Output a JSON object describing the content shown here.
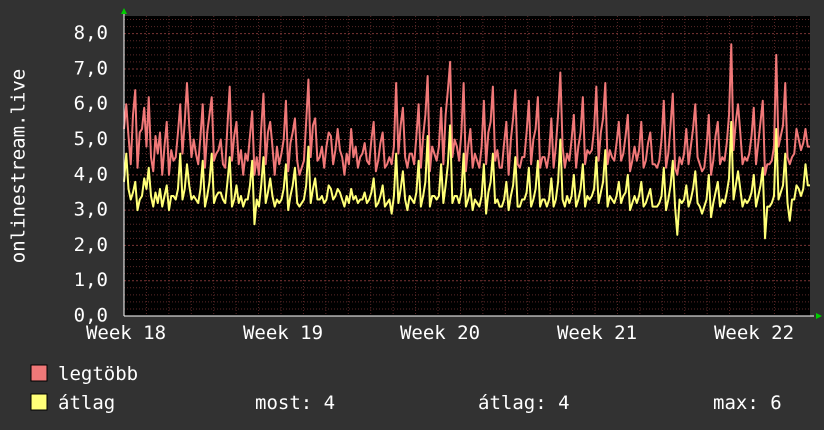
{
  "chart_data": {
    "type": "line",
    "ylabel": "onlinestream.live",
    "ylim": [
      0,
      8.5
    ],
    "y_ticks": [
      "0,0",
      "1,0",
      "2,0",
      "3,0",
      "4,0",
      "5,0",
      "6,0",
      "7,0",
      "8,0"
    ],
    "x_ticks": [
      "Week 18",
      "Week 19",
      "Week 20",
      "Week 21",
      "Week 22"
    ],
    "grid": true,
    "colors": {
      "background": "#323232",
      "plot": "#000000",
      "grid_minor": "#5a2828",
      "grid_major": "#7a3434",
      "axis": "#ffffff",
      "arrow": "#00cc00",
      "legtobb": "#f07878",
      "atlag": "#ffff78"
    },
    "series": [
      {
        "name": "legtöbb",
        "values": [
          5.3,
          6.0,
          5.1,
          4.3,
          5.7,
          6.4,
          4.2,
          5.2,
          5.3,
          5.9,
          4.8,
          6.2,
          4.5,
          4.1,
          5.1,
          4.6,
          5.2,
          4.0,
          4.8,
          5.5,
          4.0,
          4.7,
          4.4,
          4.5,
          5.2,
          6.0,
          4.6,
          5.5,
          6.6,
          5.4,
          4.5,
          5.0,
          4.6,
          4.3,
          5.1,
          6.0,
          4.2,
          5.2,
          5.7,
          6.2,
          4.4,
          4.6,
          4.7,
          5.0,
          4.3,
          4.2,
          5.4,
          6.5,
          4.4,
          5.1,
          5.5,
          4.3,
          4.7,
          4.0,
          4.6,
          4.4,
          5.1,
          5.8,
          4.0,
          4.5,
          4.0,
          5.3,
          6.3,
          4.3,
          5.2,
          5.5,
          4.8,
          4.0,
          4.8,
          4.3,
          4.6,
          5.0,
          6.1,
          4.1,
          4.9,
          5.2,
          5.6,
          4.4,
          4.0,
          4.2,
          4.4,
          5.5,
          6.7,
          4.5,
          5.4,
          5.6,
          4.4,
          4.5,
          4.8,
          4.2,
          4.8,
          5.2,
          5.1,
          4.3,
          4.7,
          5.3,
          4.7,
          4.5,
          4.0,
          4.6,
          4.3,
          5.3,
          4.5,
          4.8,
          4.2,
          4.5,
          4.6,
          4.9,
          4.4,
          4.3,
          5.0,
          5.5,
          4.1,
          4.4,
          4.9,
          5.2,
          4.2,
          4.3,
          4.5,
          4.3,
          4.8,
          6.6,
          4.6,
          5.4,
          5.9,
          4.5,
          4.2,
          4.6,
          4.6,
          4.3,
          5.1,
          6.0,
          4.2,
          5.1,
          5.7,
          6.8,
          4.1,
          4.8,
          4.6,
          4.4,
          4.8,
          5.9,
          4.3,
          5.7,
          6.4,
          7.2,
          4.5,
          5.0,
          4.8,
          4.4,
          5.2,
          6.6,
          4.1,
          4.8,
          5.3,
          4.2,
          4.6,
          4.4,
          4.2,
          4.8,
          6.1,
          4.3,
          5.2,
          5.5,
          6.5,
          4.4,
          4.7,
          4.2,
          4.2,
          4.9,
          5.5,
          4.0,
          5.0,
          5.6,
          6.4,
          4.3,
          4.2,
          4.5,
          4.5,
          5.2,
          6.1,
          4.3,
          5.0,
          5.3,
          6.2,
          4.2,
          4.5,
          4.5,
          4.2,
          4.6,
          5.6,
          4.2,
          4.8,
          5.7,
          6.9,
          4.8,
          4.2,
          4.6,
          4.4,
          5.0,
          5.7,
          4.2,
          4.8,
          5.2,
          6.2,
          4.3,
          4.7,
          4.6,
          4.7,
          5.3,
          6.5,
          4.4,
          5.2,
          5.6,
          6.6,
          4.3,
          4.7,
          4.5,
          4.4,
          4.9,
          5.5,
          4.4,
          4.6,
          5.1,
          5.7,
          4.1,
          4.4,
          4.8,
          4.4,
          4.7,
          5.5,
          4.2,
          4.4,
          4.9,
          5.2,
          4.3,
          4.3,
          4.2,
          4.4,
          5.0,
          6.1,
          4.2,
          4.6,
          5.4,
          6.3,
          4.2,
          4.0,
          4.5,
          4.3,
          4.6,
          5.3,
          4.3,
          4.8,
          5.3,
          6.0,
          4.5,
          4.3,
          4.1,
          4.2,
          4.8,
          5.7,
          4.0,
          4.4,
          5.1,
          5.5,
          4.3,
          4.5,
          4.4,
          4.9,
          5.7,
          7.7,
          4.7,
          5.5,
          6.0,
          5.2,
          4.3,
          4.5,
          4.4,
          4.6,
          5.1,
          5.9,
          4.3,
          4.9,
          5.5,
          6.1,
          4.0,
          4.3,
          4.3,
          4.4,
          4.8,
          7.4,
          4.8,
          5.1,
          5.4,
          6.6,
          4.5,
          4.3,
          4.5,
          4.6,
          5.3,
          5.0,
          4.7,
          4.9,
          5.3,
          4.8,
          4.8
        ],
        "color": "#f07878"
      },
      {
        "name": "átlag",
        "values": [
          3.8,
          4.6,
          3.6,
          3.3,
          3.5,
          3.8,
          3.0,
          3.3,
          3.4,
          3.9,
          3.6,
          4.2,
          3.4,
          3.1,
          3.5,
          3.2,
          3.6,
          3.1,
          3.4,
          3.7,
          3.0,
          3.4,
          3.4,
          3.3,
          3.6,
          4.6,
          3.3,
          3.6,
          4.3,
          3.7,
          3.3,
          3.4,
          3.3,
          3.2,
          3.6,
          4.4,
          3.1,
          3.4,
          3.8,
          4.6,
          3.2,
          3.4,
          3.5,
          3.5,
          3.3,
          3.2,
          3.8,
          4.5,
          3.1,
          3.3,
          3.7,
          3.2,
          3.4,
          3.1,
          3.3,
          3.3,
          3.7,
          4.4,
          2.6,
          3.3,
          3.1,
          3.7,
          4.5,
          3.2,
          3.5,
          3.9,
          3.4,
          3.1,
          3.3,
          3.2,
          3.3,
          3.6,
          4.3,
          3.0,
          3.4,
          3.7,
          4.2,
          3.2,
          3.1,
          3.2,
          3.3,
          3.7,
          4.8,
          3.2,
          3.6,
          3.9,
          3.3,
          3.3,
          3.4,
          3.2,
          3.3,
          3.7,
          3.6,
          3.3,
          3.4,
          3.6,
          3.5,
          3.3,
          3.1,
          3.4,
          3.2,
          3.6,
          3.3,
          3.4,
          3.2,
          3.3,
          3.3,
          3.5,
          3.2,
          3.3,
          3.5,
          3.9,
          3.1,
          3.2,
          3.4,
          3.7,
          3.1,
          3.2,
          3.3,
          2.9,
          3.4,
          4.6,
          3.2,
          3.6,
          4.1,
          3.3,
          3.0,
          3.4,
          3.3,
          3.2,
          3.5,
          4.4,
          3.1,
          3.4,
          3.8,
          5.1,
          3.1,
          3.4,
          3.4,
          3.3,
          3.4,
          4.3,
          3.2,
          3.7,
          4.3,
          5.4,
          3.2,
          3.4,
          3.4,
          3.2,
          3.5,
          4.6,
          3.1,
          3.3,
          3.6,
          3.0,
          3.3,
          3.2,
          3.1,
          3.4,
          4.3,
          2.9,
          3.5,
          3.8,
          4.6,
          3.2,
          3.3,
          3.1,
          3.1,
          3.3,
          3.8,
          3.0,
          3.4,
          3.7,
          4.5,
          3.1,
          3.1,
          3.3,
          3.3,
          3.5,
          4.2,
          3.1,
          3.3,
          3.6,
          4.4,
          3.1,
          3.3,
          3.3,
          3.1,
          3.3,
          3.9,
          3.1,
          3.3,
          3.8,
          5.0,
          3.3,
          3.1,
          3.4,
          3.2,
          3.4,
          4.0,
          3.1,
          3.3,
          3.6,
          4.3,
          3.1,
          3.4,
          3.3,
          3.4,
          3.6,
          4.5,
          3.2,
          3.5,
          3.8,
          4.7,
          3.1,
          3.4,
          3.3,
          3.2,
          3.4,
          3.8,
          3.2,
          3.4,
          3.5,
          4.0,
          3.0,
          3.2,
          3.4,
          3.2,
          3.4,
          3.8,
          3.1,
          3.2,
          3.4,
          3.6,
          3.1,
          3.1,
          3.1,
          3.2,
          3.4,
          4.2,
          3.0,
          3.3,
          3.7,
          4.4,
          3.1,
          2.3,
          3.3,
          3.2,
          3.3,
          3.7,
          3.1,
          3.3,
          3.6,
          4.1,
          3.2,
          3.1,
          2.9,
          3.1,
          3.3,
          4.0,
          2.8,
          3.2,
          3.5,
          3.8,
          3.1,
          3.3,
          3.2,
          3.5,
          3.9,
          5.5,
          3.3,
          3.7,
          4.1,
          3.6,
          3.1,
          3.3,
          3.2,
          3.3,
          3.5,
          4.0,
          3.1,
          3.4,
          3.7,
          4.2,
          2.2,
          3.1,
          3.1,
          3.2,
          3.4,
          5.3,
          3.3,
          3.5,
          3.7,
          4.6,
          3.2,
          2.7,
          3.3,
          3.3,
          3.7,
          3.6,
          3.4,
          3.6,
          4.3,
          3.7,
          3.7
        ],
        "color": "#ffff78"
      }
    ]
  },
  "legend": {
    "items": [
      {
        "label": "legtöbb",
        "color": "#f07878"
      },
      {
        "label": "átlag",
        "color": "#ffff78"
      }
    ],
    "stats": [
      {
        "label": "most: 4"
      },
      {
        "label": "átlag: 4"
      },
      {
        "label": "max: 6"
      }
    ]
  }
}
